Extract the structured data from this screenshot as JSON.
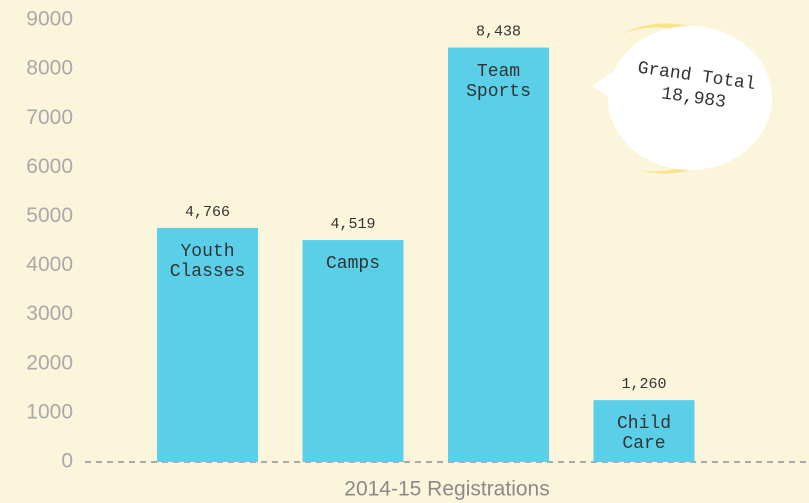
{
  "chart_data": {
    "type": "bar",
    "categories": [
      "Youth Classes",
      "Camps",
      "Team Sports",
      "Child Care"
    ],
    "values": [
      4766,
      4519,
      8438,
      1260
    ],
    "value_labels": [
      "4,766",
      "4,519",
      "8,438",
      "1,260"
    ],
    "color": "#5bcfe8",
    "ylim": [
      0,
      9000
    ],
    "yticks": [
      0,
      1000,
      2000,
      3000,
      4000,
      5000,
      6000,
      7000,
      8000,
      9000
    ],
    "x_label": "2014-15 Registrations",
    "annotation": [
      "Grand Total",
      "18,983"
    ]
  }
}
